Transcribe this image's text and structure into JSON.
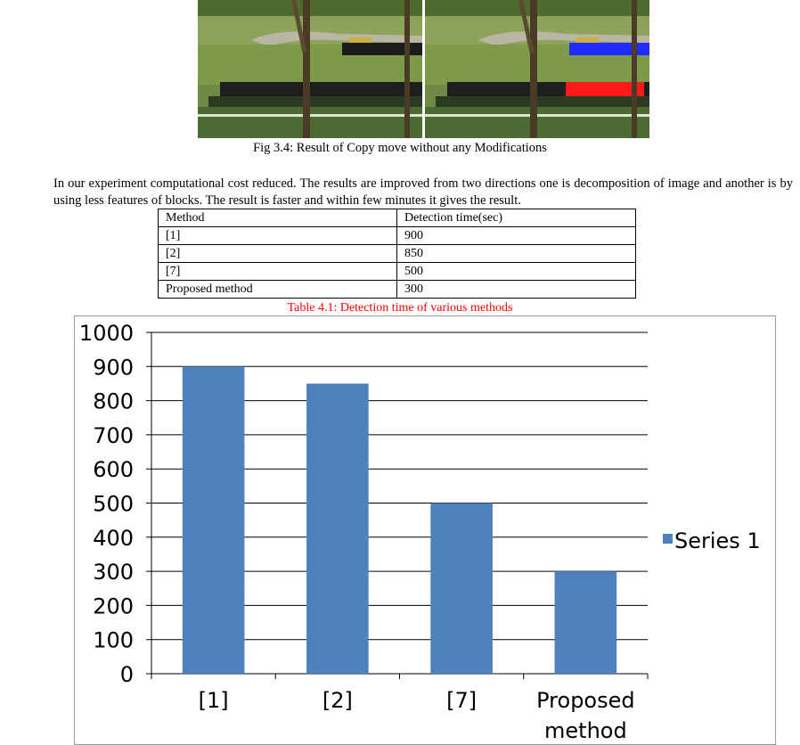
{
  "figure": {
    "caption": "Fig 3.4: Result of Copy move without any Modifications",
    "colors": {
      "forged_region_right": "#1f2bff",
      "forged_region_left_match": "#ff1a1a"
    }
  },
  "paragraph": "In our experiment computational cost reduced. The results are improved from two directions one is decomposition of image and another is by using less features of blocks. The result is faster and within few minutes it gives the result.",
  "table": {
    "headers": [
      "Method",
      "Detection time(sec)"
    ],
    "rows": [
      [
        "[1]",
        "900"
      ],
      [
        "[2]",
        "850"
      ],
      [
        "[7]",
        "500"
      ],
      [
        "Proposed method",
        "300"
      ]
    ],
    "caption": "Table 4.1: Detection time of various methods",
    "caption_color": "#ff0000"
  },
  "chart_data": {
    "type": "bar",
    "categories": [
      "[1]",
      "[2]",
      "[7]",
      "Proposed method"
    ],
    "series": [
      {
        "name": "Series 1",
        "values": [
          900,
          850,
          500,
          300
        ],
        "color": "#4f81bd"
      }
    ],
    "ylim": [
      0,
      1000
    ],
    "yticks": [
      0,
      100,
      200,
      300,
      400,
      500,
      600,
      700,
      800,
      900,
      1000
    ],
    "grid": true,
    "legend_position": "right",
    "title": "",
    "xlabel": "",
    "ylabel": ""
  }
}
